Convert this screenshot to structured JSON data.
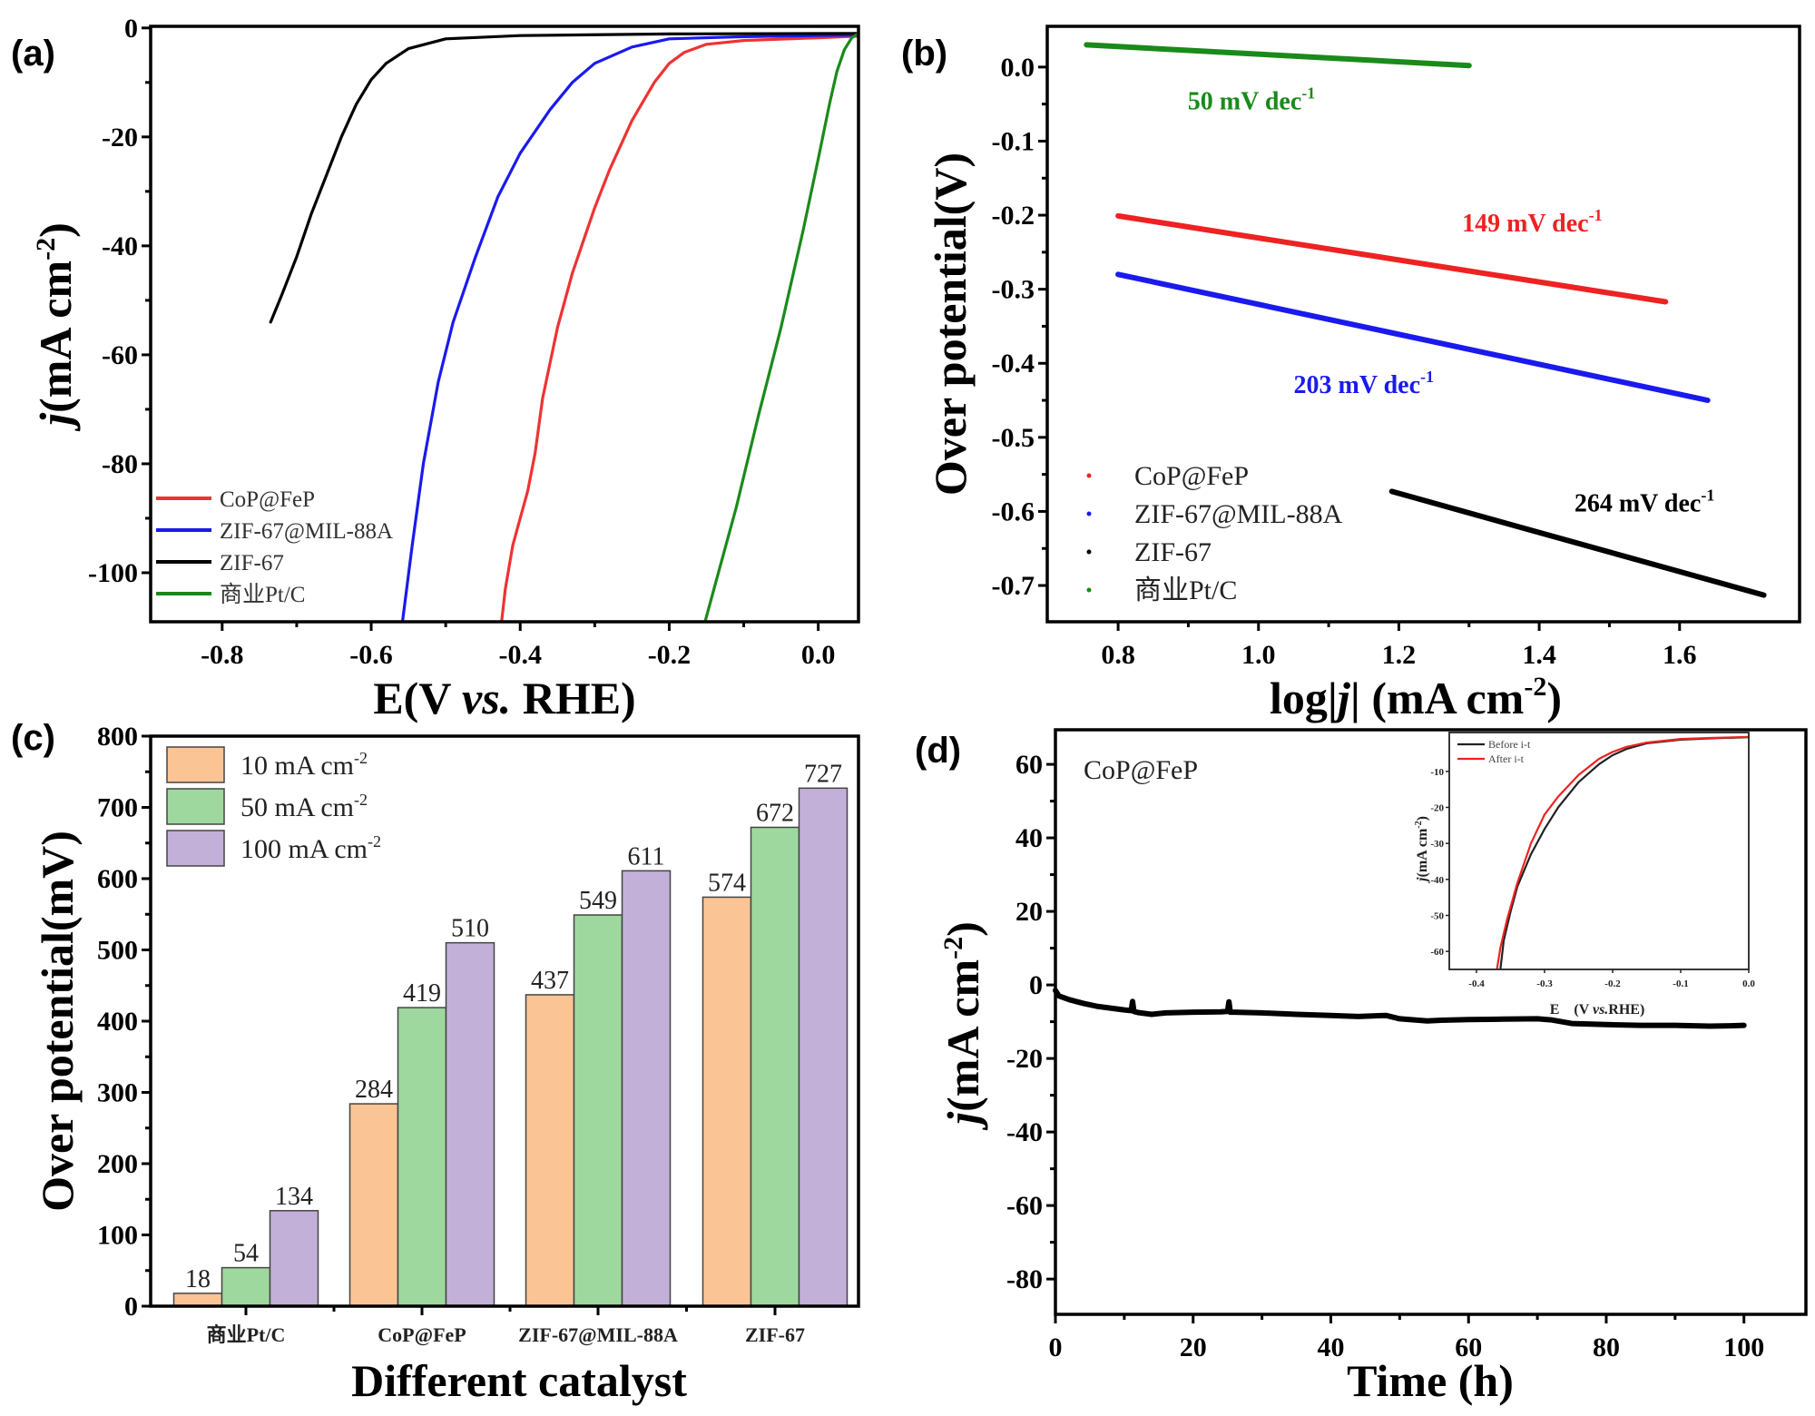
{
  "chart_data": [
    {
      "id": "a",
      "panel_label": "(a)",
      "type": "line",
      "title": "",
      "xlabel_parts": [
        "E(V ",
        "vs.",
        " RHE)"
      ],
      "ylabel_parts": [
        "j",
        "(mA cm",
        "-2",
        ")"
      ],
      "xlim": [
        -0.896,
        0.054
      ],
      "ylim": [
        -109,
        0.3
      ],
      "xticks": [
        -0.8,
        -0.6,
        -0.4,
        -0.2,
        0.0
      ],
      "xtick_labels": [
        "-0.8",
        "-0.6",
        "-0.4",
        "-0.2",
        "0.0"
      ],
      "yticks": [
        0,
        -20,
        -40,
        -60,
        -80,
        -100
      ],
      "ytick_labels": [
        "0",
        "-20",
        "-40",
        "-60",
        "-80",
        "-100"
      ],
      "legend_position": "bottom-left",
      "series": [
        {
          "name": "CoP@FeP",
          "color": "#ee3333",
          "x": [
            0.054,
            0.0,
            -0.1,
            -0.15,
            -0.18,
            -0.2,
            -0.22,
            -0.25,
            -0.28,
            -0.3,
            -0.33,
            -0.35,
            -0.37,
            -0.38,
            -0.39,
            -0.4,
            -0.41,
            -0.415,
            -0.42,
            -0.425
          ],
          "y": [
            -1.5,
            -1.8,
            -2.3,
            -3.0,
            -4.5,
            -6.5,
            -10,
            -17,
            -26,
            -33,
            -45,
            -55,
            -68,
            -78,
            -85,
            -90,
            -95,
            -99,
            -103,
            -109
          ]
        },
        {
          "name": "ZIF-67@MIL-88A",
          "color": "#1a1aee",
          "x": [
            0.054,
            0.0,
            -0.1,
            -0.2,
            -0.25,
            -0.3,
            -0.33,
            -0.36,
            -0.4,
            -0.43,
            -0.46,
            -0.49,
            -0.51,
            -0.53,
            -0.545,
            -0.558
          ],
          "y": [
            -1.3,
            -1.4,
            -1.6,
            -2.0,
            -3.5,
            -6.5,
            -10,
            -15,
            -23,
            -31,
            -42,
            -54,
            -65,
            -80,
            -95,
            -109
          ]
        },
        {
          "name": "ZIF-67",
          "color": "#000000",
          "x": [
            0.054,
            -0.2,
            -0.4,
            -0.5,
            -0.55,
            -0.58,
            -0.6,
            -0.62,
            -0.64,
            -0.66,
            -0.68,
            -0.7,
            -0.72,
            -0.735
          ],
          "y": [
            -1.0,
            -1.1,
            -1.4,
            -2.0,
            -3.8,
            -6.5,
            -9.5,
            -14,
            -20,
            -27,
            -34,
            -42,
            -49,
            -54
          ]
        },
        {
          "name": "商业Pt/C",
          "color": "#1a8a1a",
          "x": [
            0.054,
            0.045,
            0.035,
            0.025,
            0.015,
            0.0,
            -0.02,
            -0.05,
            -0.08,
            -0.11,
            -0.13,
            -0.152
          ],
          "y": [
            -1.0,
            -1.8,
            -4.0,
            -8.0,
            -14,
            -24,
            -37,
            -55,
            -71,
            -88,
            -98,
            -109
          ]
        }
      ]
    },
    {
      "id": "b",
      "panel_label": "(b)",
      "type": "line",
      "title": "",
      "xlabel_parts": [
        "log|",
        "j",
        "| (mA cm",
        "-2",
        ")"
      ],
      "ylabel": "Over potential(V)",
      "xlim": [
        0.699,
        1.771
      ],
      "ylim": [
        -0.749,
        0.055
      ],
      "xticks": [
        0.8,
        1.0,
        1.2,
        1.4,
        1.6
      ],
      "xtick_labels": [
        "0.8",
        "1.0",
        "1.2",
        "1.4",
        "1.6"
      ],
      "yticks": [
        0.0,
        -0.1,
        -0.2,
        -0.3,
        -0.4,
        -0.5,
        -0.6,
        -0.7
      ],
      "ytick_labels": [
        "0.0",
        "-0.1",
        "-0.2",
        "-0.3",
        "-0.4",
        "-0.5",
        "-0.6",
        "-0.7"
      ],
      "legend_position": "bottom-left",
      "series": [
        {
          "name": "CoP@FeP",
          "color": "#ee2222",
          "x": [
            0.8,
            1.58
          ],
          "y": [
            -0.201,
            -0.317
          ],
          "annotation": "149 mV dec",
          "annotation_sup": "-1",
          "annot_at": [
            1.39,
            -0.222
          ]
        },
        {
          "name": "ZIF-67@MIL-88A",
          "color": "#1a1aee",
          "x": [
            0.8,
            1.64
          ],
          "y": [
            -0.28,
            -0.45
          ],
          "annotation": "203 mV dec",
          "annotation_sup": "-1",
          "annot_at": [
            1.15,
            -0.44
          ]
        },
        {
          "name": "ZIF-67",
          "color": "#000000",
          "x": [
            1.19,
            1.72
          ],
          "y": [
            -0.573,
            -0.713
          ],
          "annotation": "264 mV dec",
          "annotation_sup": "-1",
          "annot_at": [
            1.55,
            -0.6
          ]
        },
        {
          "name": "商业Pt/C",
          "color": "#1a8a1a",
          "x": [
            0.755,
            1.3
          ],
          "y": [
            0.03,
            0.002
          ],
          "annotation": "50 mV dec",
          "annotation_sup": "-1",
          "annot_at": [
            0.99,
            -0.057
          ]
        }
      ]
    },
    {
      "id": "c",
      "panel_label": "(c)",
      "type": "bar",
      "title": "",
      "xlabel": "Different catalyst",
      "ylabel": "Over potential(mV)",
      "ylim": [
        0,
        800
      ],
      "yticks": [
        0,
        100,
        200,
        300,
        400,
        500,
        600,
        700,
        800
      ],
      "ytick_labels": [
        "0",
        "100",
        "200",
        "300",
        "400",
        "500",
        "600",
        "700",
        "800"
      ],
      "categories": [
        "商业Pt/C",
        "CoP@FeP",
        "ZIF-67@MIL-88A",
        "ZIF-67"
      ],
      "legend_position": "top-left",
      "series": [
        {
          "name": "10 mA cm",
          "sup": "-2",
          "color": "#fbc494",
          "values": [
            18,
            284,
            437,
            574
          ]
        },
        {
          "name": "50 mA cm",
          "sup": "-2",
          "color": "#9ed89e",
          "values": [
            54,
            419,
            549,
            672
          ]
        },
        {
          "name": "100 mA cm",
          "sup": "-2",
          "color": "#c3b0d8",
          "values": [
            134,
            510,
            611,
            727
          ]
        }
      ]
    },
    {
      "id": "d",
      "panel_label": "(d)",
      "type": "line",
      "title": "",
      "xlabel": "Time (h)",
      "ylabel_parts": [
        "j",
        "(mA cm",
        "-2",
        ")"
      ],
      "xlim": [
        0,
        109
      ],
      "ylim": [
        -89.6,
        69.4
      ],
      "xticks": [
        0,
        20,
        40,
        60,
        80,
        100
      ],
      "xtick_labels": [
        "0",
        "20",
        "40",
        "60",
        "80",
        "100"
      ],
      "yticks": [
        60,
        40,
        20,
        0,
        -20,
        -40,
        -60,
        -80
      ],
      "ytick_labels": [
        "60",
        "40",
        "20",
        "0",
        "-20",
        "-40",
        "-60",
        "-80"
      ],
      "annotation": "CoP@FeP",
      "series": [
        {
          "name": "CoP@FeP i-t",
          "color": "#000000",
          "x": [
            0,
            0.5,
            2,
            4,
            6,
            8,
            10,
            11,
            11.2,
            11.4,
            12,
            14,
            16,
            20,
            24,
            25,
            25.2,
            25.4,
            26,
            30,
            35,
            40,
            44,
            48,
            50,
            54,
            56,
            60,
            65,
            70,
            72,
            75,
            80,
            85,
            90,
            95,
            98,
            100
          ],
          "y": [
            -1.5,
            -3,
            -4,
            -5,
            -5.8,
            -6.3,
            -6.8,
            -7,
            -4.5,
            -7.2,
            -7.5,
            -8,
            -7.6,
            -7.4,
            -7.3,
            -7.2,
            -4.6,
            -7.4,
            -7.4,
            -7.6,
            -8,
            -8.3,
            -8.6,
            -8.3,
            -9.2,
            -9.8,
            -9.6,
            -9.4,
            -9.3,
            -9.2,
            -9.5,
            -10.5,
            -10.8,
            -11,
            -11,
            -11.2,
            -11.1,
            -11
          ]
        }
      ],
      "inset": {
        "type": "line",
        "xlabel_parts": [
          "E　(V ",
          "vs.",
          "RHE)"
        ],
        "ylabel_parts": [
          "j",
          "(mA cm",
          "-2",
          ")"
        ],
        "xlim": [
          -0.44,
          0.0
        ],
        "ylim": [
          -65,
          0.8
        ],
        "xticks": [
          -0.4,
          -0.3,
          -0.2,
          -0.1,
          0.0
        ],
        "xtick_labels": [
          "-0.4",
          "-0.3",
          "-0.2",
          "-0.1",
          "0.0"
        ],
        "yticks": [
          -10,
          -20,
          -30,
          -40,
          -50,
          -60
        ],
        "ytick_labels": [
          "-10",
          "-20",
          "-30",
          "-40",
          "-50",
          "-60"
        ],
        "legend_position": "top-left",
        "series": [
          {
            "name": "Before i-t",
            "color": "#222222",
            "x": [
              0.0,
              -0.05,
              -0.1,
              -0.15,
              -0.18,
              -0.2,
              -0.22,
              -0.25,
              -0.28,
              -0.3,
              -0.32,
              -0.34,
              -0.35,
              -0.36,
              -0.365
            ],
            "y": [
              -0.5,
              -0.8,
              -1.2,
              -2.2,
              -3.8,
              -5.5,
              -8,
              -13,
              -20,
              -26,
              -33,
              -42,
              -49,
              -57,
              -65
            ]
          },
          {
            "name": "After i-t",
            "color": "#ee2222",
            "x": [
              0.0,
              -0.05,
              -0.1,
              -0.15,
              -0.18,
              -0.2,
              -0.22,
              -0.25,
              -0.28,
              -0.3,
              -0.32,
              -0.34,
              -0.355,
              -0.365,
              -0.37
            ],
            "y": [
              -0.4,
              -0.7,
              -1.0,
              -2.0,
              -3.2,
              -4.6,
              -6.5,
              -11,
              -17,
              -22,
              -30,
              -41,
              -51,
              -59,
              -65
            ]
          }
        ]
      }
    }
  ]
}
